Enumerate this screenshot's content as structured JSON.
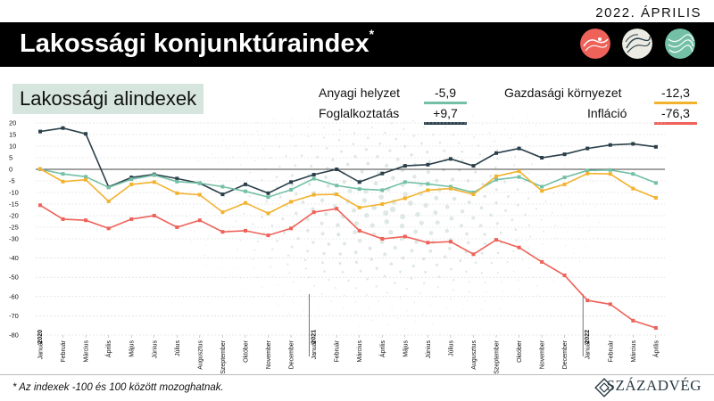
{
  "header": {
    "date": "2022. ÁPRILIS",
    "title": "Lakossági konjunktúraindex",
    "title_mark": "*"
  },
  "subtitle": "Lakossági alindexek",
  "legend": [
    {
      "label": "Anyagi helyzet",
      "value": "-5,9",
      "color": "#74c0a6"
    },
    {
      "label": "Foglalkoztatás",
      "value": "+9,7",
      "color": "#2a3f4a"
    },
    {
      "label": "Gazdasági környezet",
      "value": "-12,3",
      "color": "#f2b22e"
    },
    {
      "label": "Infláció",
      "value": "-76,3",
      "color": "#ee6259"
    }
  ],
  "footnote": "* Az indexek -100 és 100 között mozoghatnak.",
  "brand": "SZÁZADVÉG",
  "colors": {
    "background": "#ffffff",
    "titlebar": "#000000",
    "subtitle_bg": "#d6e6de"
  },
  "chart_data": {
    "type": "line",
    "ylim": [
      -80,
      20
    ],
    "yticks": [
      20,
      15,
      10,
      5,
      0,
      -5,
      -10,
      -15,
      -20,
      -25,
      -30,
      -40,
      -50,
      -60,
      -70,
      -80
    ],
    "x": [
      "Január",
      "Február",
      "Március",
      "Április",
      "Május",
      "Június",
      "Július",
      "Augusztus",
      "Szeptember",
      "Október",
      "November",
      "December",
      "Január",
      "Február",
      "Március",
      "Április",
      "Május",
      "Június",
      "Július",
      "Augusztus",
      "Szeptember",
      "Október",
      "November",
      "December",
      "Január",
      "Február",
      "Március",
      "Április"
    ],
    "year_labels": [
      {
        "index": 0,
        "label": "2020"
      },
      {
        "index": 12,
        "label": "2021"
      },
      {
        "index": 24,
        "label": "2022"
      }
    ],
    "series": [
      {
        "name": "Foglalkoztatás",
        "color": "#2a3f4a",
        "values": [
          16.3,
          17.8,
          15.3,
          -7.6,
          -3.5,
          -2.2,
          -4.0,
          -6.0,
          -10.8,
          -6.5,
          -10.3,
          -5.5,
          -2.3,
          0.0,
          -5.5,
          -1.8,
          1.5,
          2.0,
          4.5,
          1.5,
          7.0,
          9.0,
          5.0,
          6.5,
          9.0,
          10.5,
          11.0,
          9.7
        ]
      },
      {
        "name": "Anyagi helyzet",
        "color": "#74c0a6",
        "values": [
          0.0,
          -2.0,
          -3.2,
          -7.8,
          -4.3,
          -2.5,
          -5.3,
          -6.0,
          -7.5,
          -9.5,
          -12.0,
          -8.8,
          -4.0,
          -7.0,
          -8.5,
          -9.0,
          -5.5,
          -6.3,
          -7.5,
          -10.0,
          -4.5,
          -3.3,
          -7.5,
          -3.5,
          -0.5,
          -0.3,
          -2.0,
          -5.9
        ]
      },
      {
        "name": "Gazdasági környezet",
        "color": "#f2b22e",
        "values": [
          0.2,
          -5.3,
          -4.5,
          -13.8,
          -6.5,
          -5.5,
          -10.3,
          -11.0,
          -18.5,
          -14.5,
          -19.0,
          -14.0,
          -11.0,
          -10.8,
          -16.5,
          -15.0,
          -12.5,
          -9.0,
          -8.3,
          -10.8,
          -3.0,
          -0.8,
          -9.3,
          -6.5,
          -1.8,
          -2.0,
          -8.3,
          -12.3
        ]
      },
      {
        "name": "Infláció",
        "color": "#ee6259",
        "values": [
          -15.5,
          -21.5,
          -22.0,
          -25.5,
          -21.5,
          -20.0,
          -25.0,
          -22.0,
          -27.0,
          -26.5,
          -28.5,
          -25.5,
          -18.5,
          -17.0,
          -26.5,
          -30.0,
          -29.0,
          -32.0,
          -31.5,
          -38.0,
          -30.5,
          -34.5,
          -42.0,
          -49.0,
          -62.0,
          -64.0,
          -72.5,
          -76.3
        ]
      }
    ]
  }
}
